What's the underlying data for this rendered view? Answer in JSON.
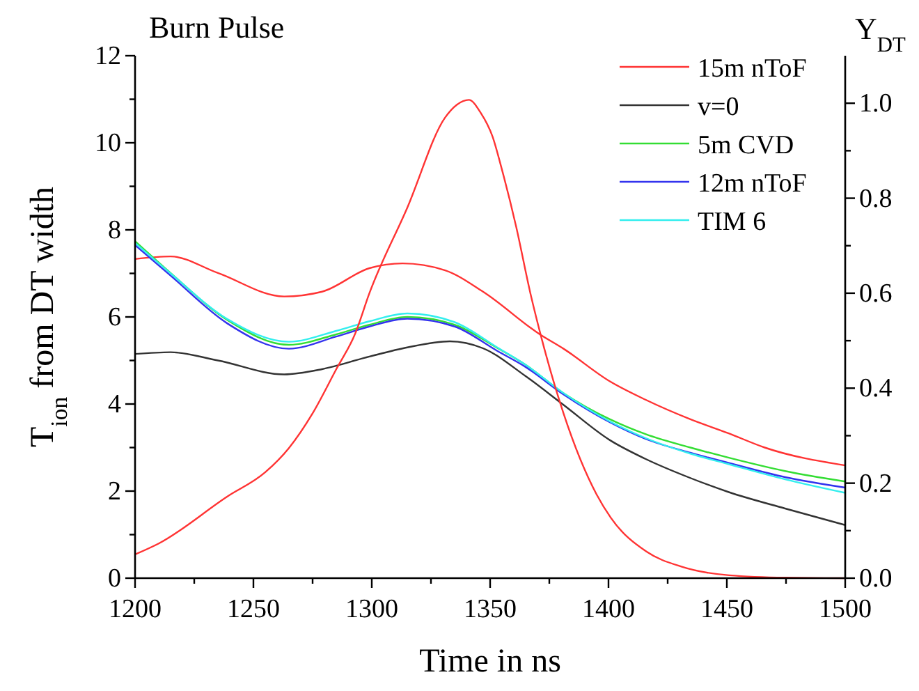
{
  "chart_data": {
    "type": "line",
    "title": "Burn Pulse",
    "xlabel": "Time in ns",
    "ylabel": "T$_{ion}$ from DT width",
    "y2label": "Y$_{DT}$",
    "xlim": [
      1200,
      1500
    ],
    "xticks": [
      1200,
      {
        "value": 1225,
        "label": null
      },
      1250,
      {
        "value": 1275,
        "label": null
      },
      1300,
      {
        "value": 1325,
        "label": null
      },
      1350,
      {
        "value": 1375,
        "label": null
      },
      1400,
      {
        "value": 1425,
        "label": null
      },
      1450,
      {
        "value": 1475,
        "label": null
      },
      1500
    ],
    "ylim": [
      0,
      12
    ],
    "yticks": [
      0,
      {
        "value": 1,
        "label": null
      },
      2,
      {
        "value": 3,
        "label": null
      },
      4,
      {
        "value": 5,
        "label": null
      },
      6,
      {
        "value": 7,
        "label": null
      },
      8,
      {
        "value": 9,
        "label": null
      },
      10,
      {
        "value": 11,
        "label": null
      },
      12
    ],
    "y2lim": [
      0,
      1.1
    ],
    "y2ticks": [
      {
        "value": 0,
        "label": "0.0"
      },
      {
        "value": 0.1,
        "label": null
      },
      {
        "value": 0.2,
        "label": "0.2"
      },
      {
        "value": 0.3,
        "label": null
      },
      {
        "value": 0.4,
        "label": "0.4"
      },
      {
        "value": 0.5,
        "label": null
      },
      {
        "value": 0.6,
        "label": "0.6"
      },
      {
        "value": 0.7,
        "label": null
      },
      {
        "value": 0.8,
        "label": "0.8"
      },
      {
        "value": 0.9,
        "label": null
      },
      {
        "value": 1.0,
        "label": "1.0"
      }
    ],
    "legend": "top right",
    "grid": false,
    "line_style": "solid",
    "series": [
      {
        "name": "15m nToF",
        "color": "#ff3333",
        "x": [
          1200,
          1215,
          1235,
          1263,
          1279,
          1299,
          1313,
          1331,
          1347,
          1371,
          1381,
          1400.6,
          1415.6,
          1434.6,
          1450.6,
          1466,
          1500
        ],
        "values": [
          7.33,
          7.39,
          7.01,
          6.47,
          6.58,
          7.12,
          7.23,
          7.07,
          6.58,
          5.6,
          5.27,
          4.52,
          4.1,
          3.65,
          3.33,
          3.0,
          2.59
        ]
      },
      {
        "name": "v=0",
        "color": "#333333",
        "x": [
          1200,
          1215,
          1235,
          1263,
          1279,
          1299,
          1315,
          1333,
          1347,
          1365,
          1381,
          1400.6,
          1415.6,
          1434.6,
          1450.6,
          1474.6,
          1500
        ],
        "values": [
          5.15,
          5.19,
          5.0,
          4.68,
          4.8,
          5.09,
          5.3,
          5.44,
          5.28,
          4.64,
          3.98,
          3.17,
          2.74,
          2.3,
          1.98,
          1.6,
          1.22
        ]
      },
      {
        "name": "5m CVD",
        "color": "#33dd33",
        "x": [
          1200,
          1215,
          1239,
          1265,
          1285,
          1299,
          1315,
          1335,
          1353,
          1365,
          1381,
          1400.6,
          1415.6,
          1434.6,
          1450.6,
          1474.6,
          1500
        ],
        "values": [
          7.74,
          7.01,
          5.93,
          5.36,
          5.6,
          5.82,
          6.0,
          5.82,
          5.29,
          4.9,
          4.25,
          3.65,
          3.31,
          3.0,
          2.77,
          2.46,
          2.22
        ]
      },
      {
        "name": "12m nToF",
        "color": "#3333ee",
        "x": [
          1200,
          1215,
          1239,
          1265,
          1285,
          1299,
          1315,
          1335,
          1353,
          1365,
          1381,
          1400.6,
          1415.6,
          1434.6,
          1450.6,
          1474.6,
          1500
        ],
        "values": [
          7.65,
          6.95,
          5.85,
          5.27,
          5.55,
          5.78,
          5.96,
          5.78,
          5.22,
          4.85,
          4.22,
          3.58,
          3.2,
          2.88,
          2.65,
          2.32,
          2.08
        ]
      },
      {
        "name": "TIM 6",
        "color": "#33eeee",
        "x": [
          1200,
          1215,
          1239,
          1265,
          1285,
          1299,
          1315,
          1335,
          1353,
          1365,
          1381,
          1400.6,
          1415.6,
          1434.6,
          1450.6,
          1474.6,
          1500
        ],
        "values": [
          7.7,
          7.0,
          5.95,
          5.43,
          5.68,
          5.9,
          6.08,
          5.88,
          5.3,
          4.9,
          4.25,
          3.6,
          3.22,
          2.86,
          2.62,
          2.27,
          1.96
        ]
      },
      {
        "color": "#ff3333",
        "axis": "y2",
        "x": [
          1200,
          1210,
          1239,
          1255,
          1265,
          1275,
          1285,
          1293,
          1299,
          1315,
          1331,
          1336,
          1341,
          1346,
          1351,
          1355,
          1361,
          1367,
          1372,
          1381,
          1395,
          1401,
          1416,
          1431,
          1451,
          1475,
          1500
        ],
        "values": [
          0.05,
          0.073,
          0.172,
          0.223,
          0.274,
          0.347,
          0.44,
          0.515,
          0.6,
          0.78,
          0.97,
          0.997,
          1.007,
          0.98,
          0.93,
          0.86,
          0.74,
          0.6,
          0.5,
          0.347,
          0.176,
          0.127,
          0.056,
          0.024,
          0.006,
          0.001,
          0
        ]
      }
    ]
  }
}
